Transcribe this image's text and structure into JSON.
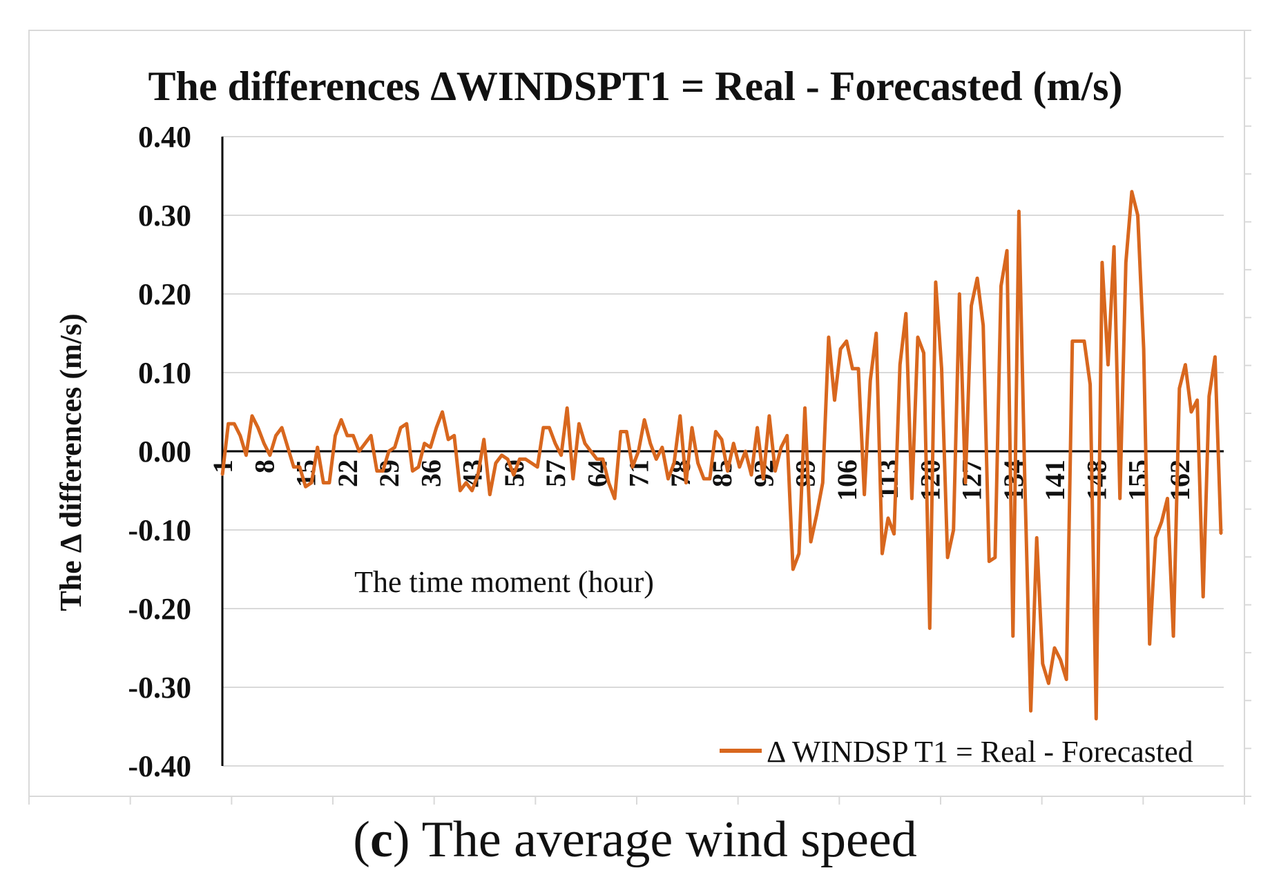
{
  "caption": {
    "open": "(",
    "label": "c",
    "close": ")",
    "text": " The average wind speed"
  },
  "colors": {
    "series": "#D8671E",
    "axis": "#000000",
    "grid": "#D9D9D9",
    "frame": "#D9D9D9",
    "text": "#111111"
  },
  "chart_data": {
    "type": "line",
    "title": "The differences ΔWINDSPT1 = Real - Forecasted (m/s)",
    "xlabel": "The time moment (hour)",
    "ylabel": "The Δ differences (m/s)",
    "ylim": [
      -0.4,
      0.4
    ],
    "xlim": [
      1,
      169
    ],
    "y_ticks": [
      0.4,
      0.3,
      0.2,
      0.1,
      0.0,
      -0.1,
      -0.2,
      -0.3,
      -0.4
    ],
    "y_tick_labels": [
      "0.40",
      "0.30",
      "0.20",
      "0.10",
      "0.00",
      "-0.10",
      "-0.20",
      "-0.30",
      "-0.40"
    ],
    "x_ticks": [
      1,
      8,
      15,
      22,
      29,
      36,
      43,
      50,
      57,
      64,
      71,
      78,
      85,
      92,
      99,
      106,
      113,
      120,
      127,
      134,
      141,
      148,
      155,
      162
    ],
    "x_tick_labels": [
      "1",
      "8",
      "15",
      "22",
      "29",
      "36",
      "43",
      "50",
      "57",
      "64",
      "71",
      "78",
      "85",
      "92",
      "99",
      "106",
      "113",
      "120",
      "127",
      "134",
      "141",
      "148",
      "155",
      "162"
    ],
    "grid": true,
    "legend_position": "bottom-right",
    "series": [
      {
        "name": "Δ WINDSP T1 = Real - Forecasted",
        "x_start": 1,
        "x_step": 1,
        "values": [
          -0.03,
          0.035,
          0.035,
          0.02,
          -0.005,
          0.045,
          0.03,
          0.01,
          -0.005,
          0.02,
          0.03,
          0.005,
          -0.02,
          -0.02,
          -0.045,
          -0.04,
          0.005,
          -0.04,
          -0.04,
          0.02,
          0.04,
          0.02,
          0.02,
          0.0,
          0.01,
          0.02,
          -0.025,
          -0.025,
          0.0,
          0.005,
          0.03,
          0.035,
          -0.025,
          -0.02,
          0.01,
          0.005,
          0.03,
          0.05,
          0.015,
          0.02,
          -0.05,
          -0.04,
          -0.05,
          -0.03,
          0.015,
          -0.055,
          -0.015,
          -0.005,
          -0.01,
          -0.03,
          -0.01,
          -0.01,
          -0.015,
          -0.02,
          0.03,
          0.03,
          0.01,
          -0.005,
          0.055,
          -0.035,
          0.035,
          0.01,
          0.0,
          -0.01,
          -0.01,
          -0.04,
          -0.06,
          0.025,
          0.025,
          -0.02,
          0.0,
          0.04,
          0.01,
          -0.01,
          0.005,
          -0.035,
          -0.015,
          0.045,
          -0.04,
          0.03,
          -0.015,
          -0.035,
          -0.035,
          0.025,
          0.015,
          -0.025,
          0.01,
          -0.02,
          0.0,
          -0.03,
          0.03,
          -0.035,
          0.045,
          -0.025,
          0.005,
          0.02,
          -0.15,
          -0.13,
          0.055,
          -0.115,
          -0.08,
          -0.04,
          0.145,
          0.065,
          0.13,
          0.14,
          0.105,
          0.105,
          -0.055,
          0.09,
          0.15,
          -0.13,
          -0.085,
          -0.105,
          0.11,
          0.175,
          -0.06,
          0.145,
          0.125,
          -0.225,
          0.215,
          0.105,
          -0.135,
          -0.1,
          0.2,
          -0.04,
          0.185,
          0.22,
          0.16,
          -0.14,
          -0.135,
          0.21,
          0.255,
          -0.235,
          0.305,
          -0.04,
          -0.33,
          -0.11,
          -0.27,
          -0.295,
          -0.25,
          -0.265,
          -0.29,
          0.14,
          0.14,
          0.14,
          0.085,
          -0.34,
          0.24,
          0.11,
          0.26,
          -0.06,
          0.24,
          0.33,
          0.3,
          0.13,
          -0.245,
          -0.11,
          -0.09,
          -0.06,
          -0.235,
          0.08,
          0.11,
          0.05,
          0.065,
          -0.185,
          0.07,
          0.12,
          -0.105
        ]
      }
    ]
  }
}
